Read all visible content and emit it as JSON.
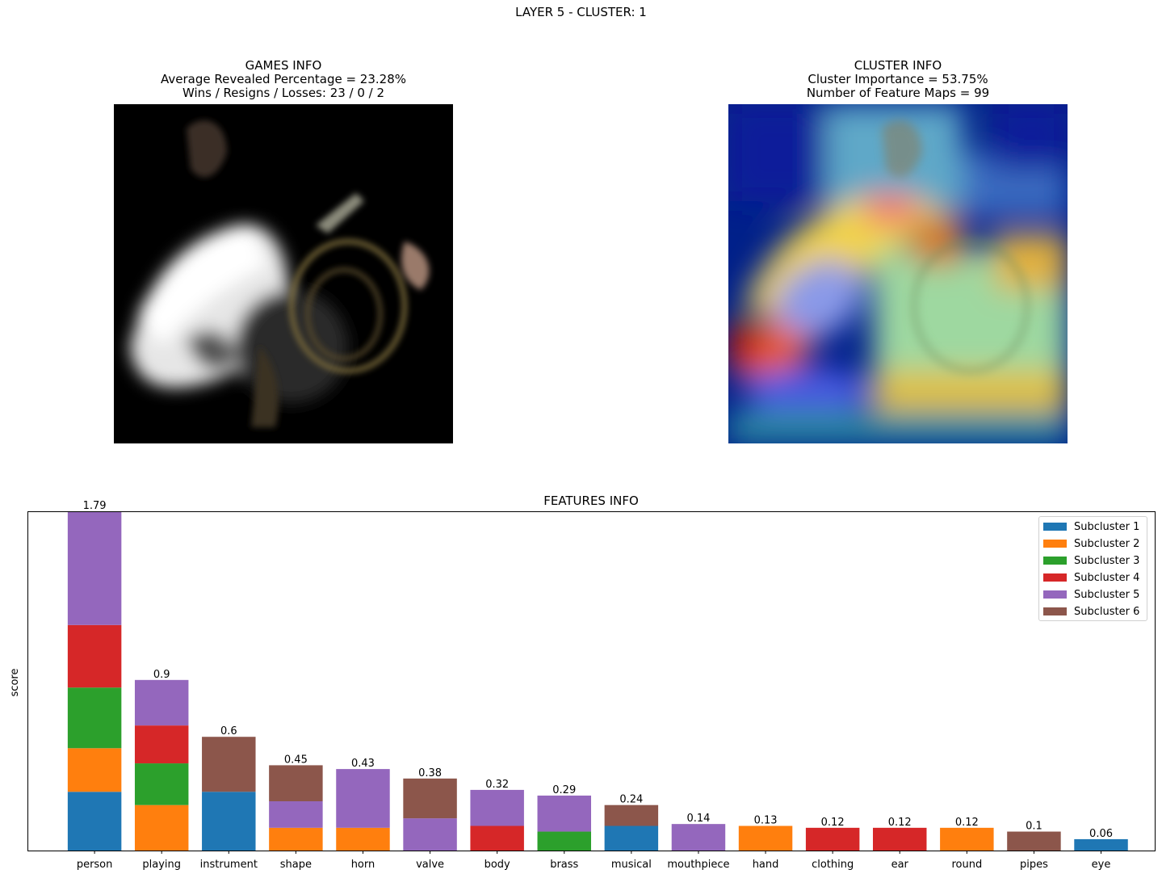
{
  "suptitle": "LAYER 5 - CLUSTER: 1",
  "games_panel": {
    "title": "GAMES INFO",
    "line1": "Average Revealed Percentage = 23.28%",
    "line2": "Wins / Resigns / Losses: 23 / 0 / 2"
  },
  "cluster_panel": {
    "title": "CLUSTER INFO",
    "line1": "Cluster Importance = 53.75%",
    "line2": "Number of Feature Maps = 99"
  },
  "chart_data": {
    "type": "bar",
    "stacked": true,
    "title": "FEATURES INFO",
    "xlabel": "",
    "ylabel": "score",
    "ylim": [
      0,
      1.79
    ],
    "legend_position": "top-right",
    "categories": [
      "person",
      "playing",
      "instrument",
      "shape",
      "horn",
      "valve",
      "body",
      "brass",
      "musical",
      "mouthpiece",
      "hand",
      "clothing",
      "ear",
      "round",
      "pipes",
      "eye"
    ],
    "totals": [
      1.79,
      0.9,
      0.6,
      0.45,
      0.43,
      0.38,
      0.32,
      0.29,
      0.24,
      0.14,
      0.13,
      0.12,
      0.12,
      0.12,
      0.1,
      0.06
    ],
    "series": [
      {
        "name": "Subcluster 1",
        "color": "#1f77b4",
        "values": [
          0.31,
          0,
          0.31,
          0,
          0,
          0,
          0,
          0,
          0.13,
          0,
          0,
          0,
          0,
          0,
          0,
          0.06
        ]
      },
      {
        "name": "Subcluster 2",
        "color": "#ff7f0e",
        "values": [
          0.23,
          0.24,
          0,
          0.12,
          0.12,
          0,
          0,
          0,
          0,
          0,
          0.13,
          0,
          0,
          0.12,
          0,
          0
        ]
      },
      {
        "name": "Subcluster 3",
        "color": "#2ca02c",
        "values": [
          0.32,
          0.22,
          0,
          0,
          0,
          0,
          0,
          0.1,
          0,
          0,
          0,
          0,
          0,
          0,
          0,
          0
        ]
      },
      {
        "name": "Subcluster 4",
        "color": "#d62728",
        "values": [
          0.33,
          0.2,
          0,
          0,
          0,
          0,
          0.13,
          0,
          0,
          0,
          0,
          0.12,
          0.12,
          0,
          0,
          0
        ]
      },
      {
        "name": "Subcluster 5",
        "color": "#9467bd",
        "values": [
          0.6,
          0.24,
          0,
          0.14,
          0.31,
          0.17,
          0.19,
          0.19,
          0,
          0.14,
          0,
          0,
          0,
          0,
          0,
          0
        ]
      },
      {
        "name": "Subcluster 6",
        "color": "#8c564b",
        "values": [
          0,
          0,
          0.29,
          0.19,
          0,
          0.21,
          0,
          0,
          0.11,
          0,
          0,
          0,
          0,
          0,
          0.1,
          0
        ]
      }
    ]
  }
}
